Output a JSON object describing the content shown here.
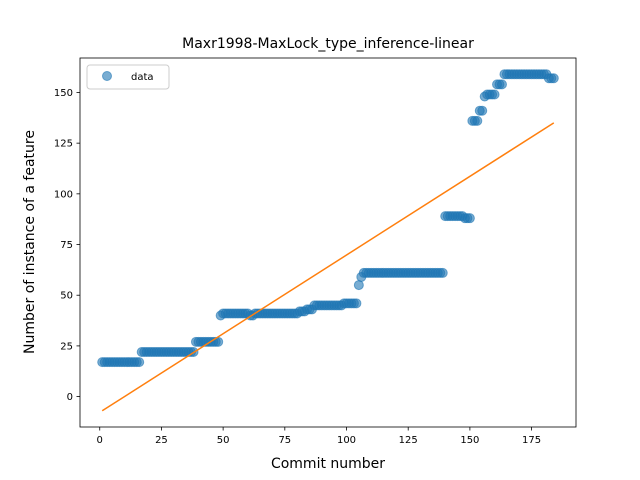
{
  "chart_data": {
    "type": "scatter",
    "title": "Maxr1998-MaxLock_type_inference-linear",
    "xlabel": "Commit number",
    "ylabel": "Number of instance of a feature",
    "xlim": [
      -8,
      193
    ],
    "ylim": [
      -15,
      167
    ],
    "xticks": [
      0,
      25,
      50,
      75,
      100,
      125,
      150,
      175
    ],
    "yticks": [
      0,
      25,
      50,
      75,
      100,
      125,
      150
    ],
    "grid": false,
    "legend": {
      "position": "upper-left",
      "entries": [
        "data"
      ]
    },
    "colors": {
      "data": "#1f77b4",
      "fit": "#ff7f0e"
    },
    "series": [
      {
        "name": "data",
        "kind": "scatter",
        "segments": [
          {
            "x_start": 1,
            "x_end": 16,
            "y": 17
          },
          {
            "x_start": 17,
            "x_end": 38,
            "y": 22
          },
          {
            "x_start": 39,
            "x_end": 48,
            "y": 27
          },
          {
            "x_start": 49,
            "x_end": 49,
            "y": 40
          },
          {
            "x_start": 50,
            "x_end": 60,
            "y": 41
          },
          {
            "x_start": 61,
            "x_end": 62,
            "y": 40
          },
          {
            "x_start": 63,
            "x_end": 80,
            "y": 41
          },
          {
            "x_start": 81,
            "x_end": 83,
            "y": 42
          },
          {
            "x_start": 84,
            "x_end": 86,
            "y": 43
          },
          {
            "x_start": 87,
            "x_end": 98,
            "y": 45
          },
          {
            "x_start": 99,
            "x_end": 104,
            "y": 46
          },
          {
            "x_start": 105,
            "x_end": 105,
            "y": 55
          },
          {
            "x_start": 106,
            "x_end": 106,
            "y": 59
          },
          {
            "x_start": 107,
            "x_end": 139,
            "y": 61
          },
          {
            "x_start": 140,
            "x_end": 147,
            "y": 89
          },
          {
            "x_start": 148,
            "x_end": 150,
            "y": 88
          },
          {
            "x_start": 151,
            "x_end": 153,
            "y": 136
          },
          {
            "x_start": 154,
            "x_end": 155,
            "y": 141
          },
          {
            "x_start": 156,
            "x_end": 156,
            "y": 148
          },
          {
            "x_start": 157,
            "x_end": 160,
            "y": 149
          },
          {
            "x_start": 161,
            "x_end": 163,
            "y": 154
          },
          {
            "x_start": 164,
            "x_end": 181,
            "y": 159
          },
          {
            "x_start": 182,
            "x_end": 184,
            "y": 157
          }
        ]
      },
      {
        "name": "",
        "kind": "line",
        "x": [
          1,
          184
        ],
        "y": [
          -7,
          135
        ]
      }
    ]
  }
}
